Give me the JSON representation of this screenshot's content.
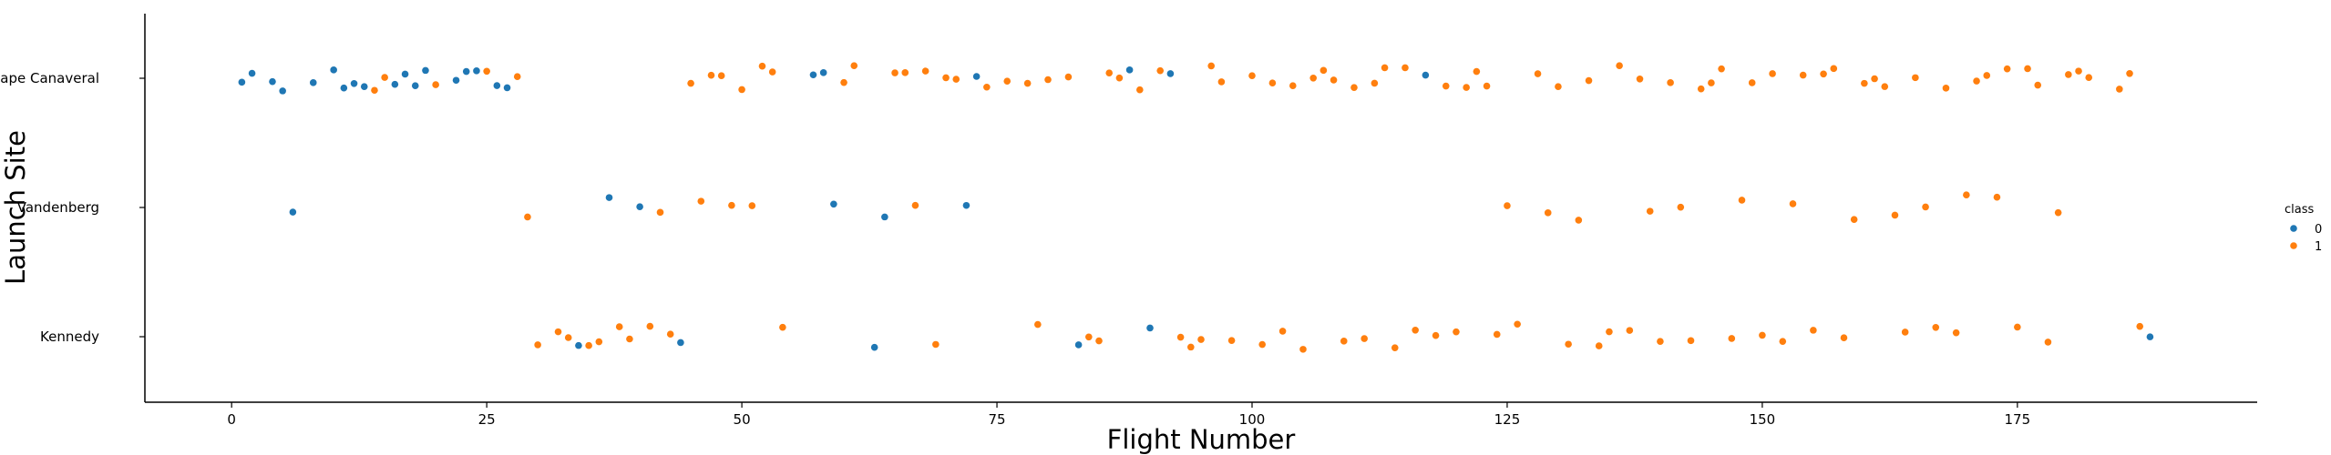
{
  "chart_data": {
    "type": "scatter",
    "xlabel": "Flight Number",
    "ylabel": "Launch Site",
    "xlim": [
      -8.5,
      198.5
    ],
    "x_ticks": [
      0,
      25,
      50,
      75,
      100,
      125,
      150,
      175
    ],
    "categories": [
      "Cape Canaveral",
      "Vandenberg",
      "Kennedy"
    ],
    "legend": {
      "title": "class",
      "placement": "right",
      "entries": [
        "0",
        "1"
      ]
    },
    "grid": false,
    "colors": {
      "0": "#1f77b4",
      "1": "#ff7f0e"
    },
    "series": [
      {
        "name": "0",
        "points": [
          {
            "x": 1,
            "site": "Cape Canaveral"
          },
          {
            "x": 2,
            "site": "Cape Canaveral"
          },
          {
            "x": 4,
            "site": "Cape Canaveral"
          },
          {
            "x": 5,
            "site": "Cape Canaveral"
          },
          {
            "x": 6,
            "site": "Vandenberg"
          },
          {
            "x": 8,
            "site": "Cape Canaveral"
          },
          {
            "x": 10,
            "site": "Cape Canaveral"
          },
          {
            "x": 11,
            "site": "Cape Canaveral"
          },
          {
            "x": 12,
            "site": "Cape Canaveral"
          },
          {
            "x": 13,
            "site": "Cape Canaveral"
          },
          {
            "x": 16,
            "site": "Cape Canaveral"
          },
          {
            "x": 17,
            "site": "Cape Canaveral"
          },
          {
            "x": 18,
            "site": "Cape Canaveral"
          },
          {
            "x": 19,
            "site": "Cape Canaveral"
          },
          {
            "x": 22,
            "site": "Cape Canaveral"
          },
          {
            "x": 23,
            "site": "Cape Canaveral"
          },
          {
            "x": 24,
            "site": "Cape Canaveral"
          },
          {
            "x": 26,
            "site": "Cape Canaveral"
          },
          {
            "x": 27,
            "site": "Cape Canaveral"
          },
          {
            "x": 34,
            "site": "Kennedy"
          },
          {
            "x": 37,
            "site": "Vandenberg"
          },
          {
            "x": 40,
            "site": "Vandenberg"
          },
          {
            "x": 44,
            "site": "Kennedy"
          },
          {
            "x": 57,
            "site": "Cape Canaveral"
          },
          {
            "x": 58,
            "site": "Cape Canaveral"
          },
          {
            "x": 59,
            "site": "Vandenberg"
          },
          {
            "x": 63,
            "site": "Kennedy"
          },
          {
            "x": 64,
            "site": "Vandenberg"
          },
          {
            "x": 72,
            "site": "Vandenberg"
          },
          {
            "x": 73,
            "site": "Cape Canaveral"
          },
          {
            "x": 83,
            "site": "Kennedy"
          },
          {
            "x": 88,
            "site": "Cape Canaveral"
          },
          {
            "x": 90,
            "site": "Kennedy"
          },
          {
            "x": 92,
            "site": "Cape Canaveral"
          },
          {
            "x": 117,
            "site": "Cape Canaveral"
          },
          {
            "x": 188,
            "site": "Kennedy"
          }
        ]
      },
      {
        "name": "1",
        "points": [
          {
            "x": 14,
            "site": "Cape Canaveral"
          },
          {
            "x": 15,
            "site": "Cape Canaveral"
          },
          {
            "x": 20,
            "site": "Cape Canaveral"
          },
          {
            "x": 25,
            "site": "Cape Canaveral"
          },
          {
            "x": 28,
            "site": "Cape Canaveral"
          },
          {
            "x": 29,
            "site": "Vandenberg"
          },
          {
            "x": 30,
            "site": "Kennedy"
          },
          {
            "x": 32,
            "site": "Kennedy"
          },
          {
            "x": 33,
            "site": "Kennedy"
          },
          {
            "x": 35,
            "site": "Kennedy"
          },
          {
            "x": 36,
            "site": "Kennedy"
          },
          {
            "x": 38,
            "site": "Kennedy"
          },
          {
            "x": 39,
            "site": "Kennedy"
          },
          {
            "x": 41,
            "site": "Kennedy"
          },
          {
            "x": 42,
            "site": "Vandenberg"
          },
          {
            "x": 43,
            "site": "Kennedy"
          },
          {
            "x": 45,
            "site": "Cape Canaveral"
          },
          {
            "x": 46,
            "site": "Vandenberg"
          },
          {
            "x": 47,
            "site": "Cape Canaveral"
          },
          {
            "x": 48,
            "site": "Cape Canaveral"
          },
          {
            "x": 49,
            "site": "Vandenberg"
          },
          {
            "x": 50,
            "site": "Cape Canaveral"
          },
          {
            "x": 51,
            "site": "Vandenberg"
          },
          {
            "x": 52,
            "site": "Cape Canaveral"
          },
          {
            "x": 53,
            "site": "Cape Canaveral"
          },
          {
            "x": 54,
            "site": "Kennedy"
          },
          {
            "x": 60,
            "site": "Cape Canaveral"
          },
          {
            "x": 61,
            "site": "Cape Canaveral"
          },
          {
            "x": 65,
            "site": "Cape Canaveral"
          },
          {
            "x": 66,
            "site": "Cape Canaveral"
          },
          {
            "x": 67,
            "site": "Vandenberg"
          },
          {
            "x": 68,
            "site": "Cape Canaveral"
          },
          {
            "x": 69,
            "site": "Kennedy"
          },
          {
            "x": 70,
            "site": "Cape Canaveral"
          },
          {
            "x": 71,
            "site": "Cape Canaveral"
          },
          {
            "x": 74,
            "site": "Cape Canaveral"
          },
          {
            "x": 76,
            "site": "Cape Canaveral"
          },
          {
            "x": 78,
            "site": "Cape Canaveral"
          },
          {
            "x": 79,
            "site": "Kennedy"
          },
          {
            "x": 80,
            "site": "Cape Canaveral"
          },
          {
            "x": 82,
            "site": "Cape Canaveral"
          },
          {
            "x": 84,
            "site": "Kennedy"
          },
          {
            "x": 85,
            "site": "Kennedy"
          },
          {
            "x": 86,
            "site": "Cape Canaveral"
          },
          {
            "x": 87,
            "site": "Cape Canaveral"
          },
          {
            "x": 89,
            "site": "Cape Canaveral"
          },
          {
            "x": 91,
            "site": "Cape Canaveral"
          },
          {
            "x": 93,
            "site": "Kennedy"
          },
          {
            "x": 94,
            "site": "Kennedy"
          },
          {
            "x": 95,
            "site": "Kennedy"
          },
          {
            "x": 96,
            "site": "Cape Canaveral"
          },
          {
            "x": 97,
            "site": "Cape Canaveral"
          },
          {
            "x": 98,
            "site": "Kennedy"
          },
          {
            "x": 100,
            "site": "Cape Canaveral"
          },
          {
            "x": 101,
            "site": "Kennedy"
          },
          {
            "x": 102,
            "site": "Cape Canaveral"
          },
          {
            "x": 103,
            "site": "Kennedy"
          },
          {
            "x": 104,
            "site": "Cape Canaveral"
          },
          {
            "x": 105,
            "site": "Kennedy"
          },
          {
            "x": 106,
            "site": "Cape Canaveral"
          },
          {
            "x": 107,
            "site": "Cape Canaveral"
          },
          {
            "x": 108,
            "site": "Cape Canaveral"
          },
          {
            "x": 109,
            "site": "Kennedy"
          },
          {
            "x": 110,
            "site": "Cape Canaveral"
          },
          {
            "x": 111,
            "site": "Kennedy"
          },
          {
            "x": 112,
            "site": "Cape Canaveral"
          },
          {
            "x": 113,
            "site": "Cape Canaveral"
          },
          {
            "x": 114,
            "site": "Kennedy"
          },
          {
            "x": 115,
            "site": "Cape Canaveral"
          },
          {
            "x": 116,
            "site": "Kennedy"
          },
          {
            "x": 118,
            "site": "Kennedy"
          },
          {
            "x": 119,
            "site": "Cape Canaveral"
          },
          {
            "x": 120,
            "site": "Kennedy"
          },
          {
            "x": 121,
            "site": "Cape Canaveral"
          },
          {
            "x": 122,
            "site": "Cape Canaveral"
          },
          {
            "x": 123,
            "site": "Cape Canaveral"
          },
          {
            "x": 124,
            "site": "Kennedy"
          },
          {
            "x": 125,
            "site": "Vandenberg"
          },
          {
            "x": 126,
            "site": "Kennedy"
          },
          {
            "x": 128,
            "site": "Cape Canaveral"
          },
          {
            "x": 129,
            "site": "Vandenberg"
          },
          {
            "x": 130,
            "site": "Cape Canaveral"
          },
          {
            "x": 131,
            "site": "Kennedy"
          },
          {
            "x": 132,
            "site": "Vandenberg"
          },
          {
            "x": 133,
            "site": "Cape Canaveral"
          },
          {
            "x": 134,
            "site": "Kennedy"
          },
          {
            "x": 135,
            "site": "Kennedy"
          },
          {
            "x": 136,
            "site": "Cape Canaveral"
          },
          {
            "x": 137,
            "site": "Kennedy"
          },
          {
            "x": 138,
            "site": "Cape Canaveral"
          },
          {
            "x": 139,
            "site": "Vandenberg"
          },
          {
            "x": 140,
            "site": "Kennedy"
          },
          {
            "x": 141,
            "site": "Cape Canaveral"
          },
          {
            "x": 142,
            "site": "Vandenberg"
          },
          {
            "x": 143,
            "site": "Kennedy"
          },
          {
            "x": 144,
            "site": "Cape Canaveral"
          },
          {
            "x": 145,
            "site": "Cape Canaveral"
          },
          {
            "x": 146,
            "site": "Cape Canaveral"
          },
          {
            "x": 147,
            "site": "Kennedy"
          },
          {
            "x": 148,
            "site": "Vandenberg"
          },
          {
            "x": 149,
            "site": "Cape Canaveral"
          },
          {
            "x": 150,
            "site": "Kennedy"
          },
          {
            "x": 151,
            "site": "Cape Canaveral"
          },
          {
            "x": 152,
            "site": "Kennedy"
          },
          {
            "x": 153,
            "site": "Vandenberg"
          },
          {
            "x": 154,
            "site": "Cape Canaveral"
          },
          {
            "x": 155,
            "site": "Kennedy"
          },
          {
            "x": 156,
            "site": "Cape Canaveral"
          },
          {
            "x": 157,
            "site": "Cape Canaveral"
          },
          {
            "x": 158,
            "site": "Kennedy"
          },
          {
            "x": 159,
            "site": "Vandenberg"
          },
          {
            "x": 160,
            "site": "Cape Canaveral"
          },
          {
            "x": 161,
            "site": "Cape Canaveral"
          },
          {
            "x": 162,
            "site": "Cape Canaveral"
          },
          {
            "x": 163,
            "site": "Vandenberg"
          },
          {
            "x": 164,
            "site": "Kennedy"
          },
          {
            "x": 165,
            "site": "Cape Canaveral"
          },
          {
            "x": 166,
            "site": "Vandenberg"
          },
          {
            "x": 167,
            "site": "Kennedy"
          },
          {
            "x": 168,
            "site": "Cape Canaveral"
          },
          {
            "x": 169,
            "site": "Kennedy"
          },
          {
            "x": 170,
            "site": "Vandenberg"
          },
          {
            "x": 171,
            "site": "Cape Canaveral"
          },
          {
            "x": 172,
            "site": "Cape Canaveral"
          },
          {
            "x": 173,
            "site": "Vandenberg"
          },
          {
            "x": 174,
            "site": "Cape Canaveral"
          },
          {
            "x": 175,
            "site": "Kennedy"
          },
          {
            "x": 176,
            "site": "Cape Canaveral"
          },
          {
            "x": 177,
            "site": "Cape Canaveral"
          },
          {
            "x": 178,
            "site": "Kennedy"
          },
          {
            "x": 179,
            "site": "Vandenberg"
          },
          {
            "x": 180,
            "site": "Cape Canaveral"
          },
          {
            "x": 181,
            "site": "Cape Canaveral"
          },
          {
            "x": 182,
            "site": "Cape Canaveral"
          },
          {
            "x": 185,
            "site": "Cape Canaveral"
          },
          {
            "x": 186,
            "site": "Cape Canaveral"
          },
          {
            "x": 187,
            "site": "Kennedy"
          }
        ]
      }
    ]
  }
}
